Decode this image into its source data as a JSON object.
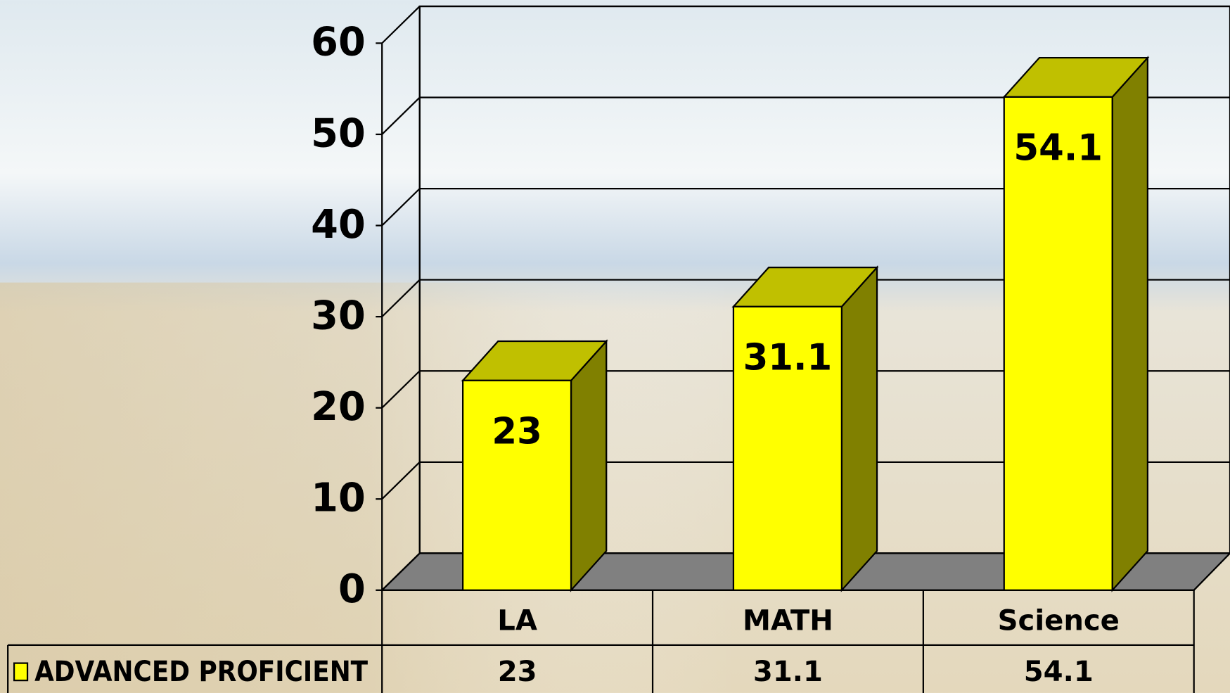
{
  "chart_data": {
    "type": "bar",
    "categories": [
      "LA",
      "MATH",
      "Science"
    ],
    "series": [
      {
        "name": "ADVANCED PROFICIENT",
        "color": "#ffff00",
        "values": [
          23,
          31.1,
          54.1
        ]
      }
    ],
    "ylim": [
      0,
      60
    ],
    "yticks": [
      0,
      10,
      20,
      30,
      40,
      50,
      60
    ],
    "grid": true
  }
}
